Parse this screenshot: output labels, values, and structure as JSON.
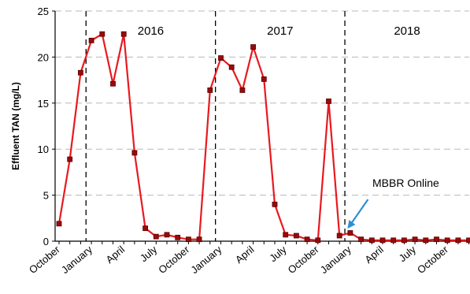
{
  "chart_data": {
    "type": "line",
    "title": "",
    "xlabel": "",
    "ylabel": "Effluent TAN (mg/L)",
    "ylim": [
      0,
      25
    ],
    "yticks": [
      0,
      5,
      10,
      15,
      20,
      25
    ],
    "grid": "horizontal dashed",
    "legend": "none",
    "line_color": "#e8191f",
    "marker_fill": "#9a0a0a",
    "x_tick_labels": [
      "October",
      "January",
      "April",
      "July",
      "October",
      "January",
      "April",
      "July",
      "October",
      "January",
      "April",
      "July",
      "October"
    ],
    "year_dividers": [
      "2016",
      "2017",
      "2018"
    ],
    "x": [
      "2015-10",
      "2015-11",
      "2015-12",
      "2016-01",
      "2016-02",
      "2016-03",
      "2016-04",
      "2016-05",
      "2016-06",
      "2016-07",
      "2016-08",
      "2016-09",
      "2016-10",
      "2016-11",
      "2016-12",
      "2017-01",
      "2017-02",
      "2017-03",
      "2017-04",
      "2017-05",
      "2017-06",
      "2017-07",
      "2017-08",
      "2017-09",
      "2017-10",
      "2017-11",
      "2017-12",
      "2018-01",
      "2018-02",
      "2018-03",
      "2018-04",
      "2018-05",
      "2018-06",
      "2018-07",
      "2018-08",
      "2018-09",
      "2018-10",
      "2018-11",
      "2018-12"
    ],
    "series": [
      {
        "name": "",
        "values": [
          1.9,
          8.9,
          18.3,
          21.8,
          22.5,
          17.1,
          22.5,
          9.6,
          1.4,
          0.5,
          0.7,
          0.4,
          0.2,
          0.2,
          16.4,
          19.9,
          18.9,
          16.4,
          21.1,
          17.6,
          4.0,
          0.7,
          0.6,
          0.2,
          0.1,
          15.2,
          0.6,
          0.9,
          0.2,
          0.1,
          0.1,
          0.1,
          0.1,
          0.2,
          0.1,
          0.2,
          0.1,
          0.1,
          0.1
        ]
      }
    ],
    "annotations": [
      {
        "text": "MBBR Online"
      }
    ]
  }
}
